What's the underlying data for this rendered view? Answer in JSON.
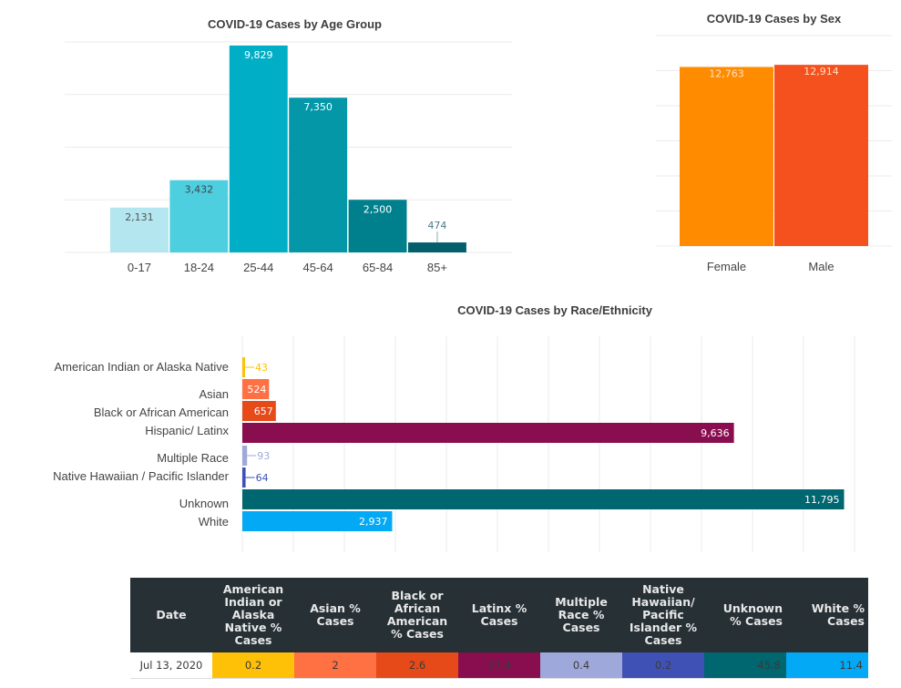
{
  "chart_data": [
    {
      "id": "age",
      "type": "bar",
      "title": "COVID-19 Cases by Age Group",
      "categories": [
        "0-17",
        "18-24",
        "25-44",
        "45-64",
        "65-84",
        "85+"
      ],
      "values": [
        2131,
        3432,
        9829,
        7350,
        2500,
        474
      ],
      "value_labels": [
        "2,131",
        "3,432",
        "9,829",
        "7,350",
        "2,500",
        "474"
      ],
      "colors": [
        "#b3e6ef",
        "#4dcfe0",
        "#00aec6",
        "#0397a8",
        "#00808d",
        "#025f6b"
      ],
      "label_colors": [
        "#555555",
        "#444444",
        "#ffffff",
        "#ffffff",
        "#ffffff",
        "#4a7a85"
      ],
      "xlabel": "",
      "ylabel": "",
      "ylim": [
        0,
        10000
      ],
      "ygrid_step": 2500,
      "grid": true,
      "legend": "none"
    },
    {
      "id": "sex",
      "type": "bar",
      "title": "COVID-19 Cases by Sex",
      "categories": [
        "Female",
        "Male"
      ],
      "values": [
        12763,
        12914
      ],
      "value_labels": [
        "12,763",
        "12,914"
      ],
      "colors": [
        "#ff8c00",
        "#f4511e"
      ],
      "xlabel": "",
      "ylabel": "",
      "ylim": [
        0,
        15000
      ],
      "ygrid_step": 2500,
      "grid": true,
      "legend": "none"
    },
    {
      "id": "race",
      "type": "bar",
      "orientation": "horizontal",
      "title": "COVID-19 Cases by Race/Ethnicity",
      "categories": [
        "American Indian or Alaska Native",
        "Asian",
        "Black or African American",
        "Hispanic/ Latinx",
        "Multiple Race",
        "Native Hawaiian / Pacific Islander",
        "Unknown",
        "White"
      ],
      "values": [
        43,
        524,
        657,
        9636,
        93,
        64,
        11795,
        2937
      ],
      "value_labels": [
        "43",
        "524",
        "657",
        "9,636",
        "93",
        "64",
        "11,795",
        "2,937"
      ],
      "colors": [
        "#ffc107",
        "#ff7043",
        "#e64a19",
        "#880e4f",
        "#9fa8da",
        "#3f51b5",
        "#006670",
        "#03a9f4"
      ],
      "xlabel": "",
      "ylabel": "",
      "xlim": [
        0,
        12000
      ],
      "xgrid_step": 1000,
      "grid": true,
      "legend": "none"
    }
  ],
  "table": {
    "headers": [
      "Date",
      "American Indian or Alaska Native % Cases",
      "Asian % Cases",
      "Black or African American % Cases",
      "Latinx % Cases",
      "Multiple Race % Cases",
      "Native Hawaiian/ Pacific Islander % Cases",
      "Unknown % Cases",
      "White % Cases"
    ],
    "rows": [
      [
        "Jul 13, 2020",
        "0.2",
        "2",
        "2.6",
        "37.4",
        "0.4",
        "0.2",
        "45.8",
        "11.4"
      ]
    ],
    "cell_colors": [
      "#ffffff",
      "#ffc107",
      "#ff7043",
      "#e64a19",
      "#880e4f",
      "#9fa8da",
      "#3f51b5",
      "#006670",
      "#03a9f4"
    ]
  }
}
